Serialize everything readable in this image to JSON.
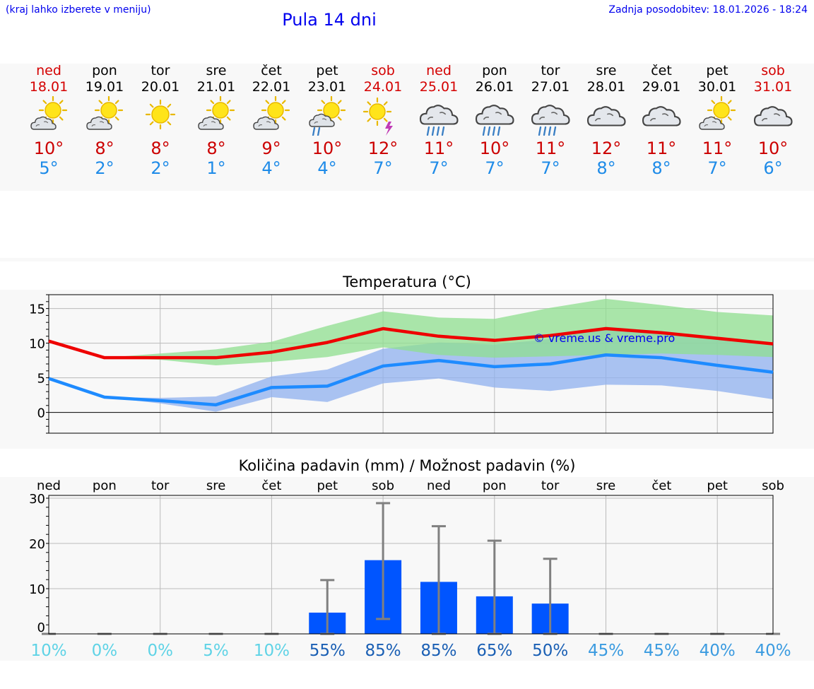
{
  "header": {
    "hint": "(kraj lahko izberete v meniju)",
    "title": "Pula 14 dni",
    "updated": "Zadnja posodobitev: 18.01.2026 - 18:24"
  },
  "days": [
    {
      "name": "ned",
      "date": "18.01",
      "weekend": true,
      "icon": "sun-cloud-icon",
      "tmax": "10°",
      "tmin": "5°"
    },
    {
      "name": "pon",
      "date": "19.01",
      "weekend": false,
      "icon": "sun-cloud-icon",
      "tmax": "8°",
      "tmin": "2°"
    },
    {
      "name": "tor",
      "date": "20.01",
      "weekend": false,
      "icon": "sun-icon",
      "tmax": "8°",
      "tmin": "2°"
    },
    {
      "name": "sre",
      "date": "21.01",
      "weekend": false,
      "icon": "sun-cloud-icon",
      "tmax": "8°",
      "tmin": "1°"
    },
    {
      "name": "čet",
      "date": "22.01",
      "weekend": false,
      "icon": "sun-cloud-icon",
      "tmax": "9°",
      "tmin": "4°"
    },
    {
      "name": "pet",
      "date": "23.01",
      "weekend": false,
      "icon": "sun-cloud-rain-icon",
      "tmax": "10°",
      "tmin": "4°"
    },
    {
      "name": "sob",
      "date": "24.01",
      "weekend": true,
      "icon": "sun-thunder-icon",
      "tmax": "12°",
      "tmin": "7°"
    },
    {
      "name": "ned",
      "date": "25.01",
      "weekend": true,
      "icon": "cloud-rain-icon",
      "tmax": "11°",
      "tmin": "7°"
    },
    {
      "name": "pon",
      "date": "26.01",
      "weekend": false,
      "icon": "cloud-rain-icon",
      "tmax": "10°",
      "tmin": "7°"
    },
    {
      "name": "tor",
      "date": "27.01",
      "weekend": false,
      "icon": "cloud-rain-icon",
      "tmax": "11°",
      "tmin": "7°"
    },
    {
      "name": "sre",
      "date": "28.01",
      "weekend": false,
      "icon": "cloud-icon",
      "tmax": "12°",
      "tmin": "8°"
    },
    {
      "name": "čet",
      "date": "29.01",
      "weekend": false,
      "icon": "cloud-icon",
      "tmax": "11°",
      "tmin": "8°"
    },
    {
      "name": "pet",
      "date": "30.01",
      "weekend": false,
      "icon": "sun-cloud-icon",
      "tmax": "11°",
      "tmin": "7°"
    },
    {
      "name": "sob",
      "date": "31.01",
      "weekend": true,
      "icon": "cloud-icon",
      "tmax": "10°",
      "tmin": "6°"
    }
  ],
  "colors": {
    "tmax_line": "#ee0000",
    "tmin_line": "#1e8bff",
    "max_band": "#8fdf8f",
    "min_band": "#8fb0ef",
    "bar": "#0055ff",
    "whisker": "#808080",
    "grid": "#bbbbbb"
  },
  "chart_data": [
    {
      "type": "line",
      "title": "Temperatura (°C)",
      "watermark": "© vreme.us & vreme.pro",
      "x": [
        "18.01",
        "19.01",
        "20.01",
        "21.01",
        "22.01",
        "23.01",
        "24.01",
        "25.01",
        "26.01",
        "27.01",
        "28.01",
        "29.01",
        "30.01",
        "31.01"
      ],
      "ylim": [
        -3,
        17
      ],
      "yticks": [
        0,
        5,
        10,
        15
      ],
      "series": [
        {
          "name": "tmax",
          "values": [
            10.3,
            7.9,
            7.9,
            7.9,
            8.7,
            10.1,
            12.1,
            11.0,
            10.4,
            11.1,
            12.1,
            11.5,
            10.7,
            9.9
          ],
          "band_low": [
            10.3,
            7.9,
            7.6,
            6.8,
            7.3,
            8.0,
            9.4,
            8.3,
            7.9,
            8.1,
            8.3,
            8.5,
            8.3,
            8.0
          ],
          "band_high": [
            10.3,
            7.9,
            8.5,
            9.1,
            10.2,
            12.5,
            14.6,
            13.7,
            13.5,
            15.1,
            16.4,
            15.5,
            14.5,
            14.0
          ]
        },
        {
          "name": "tmin",
          "values": [
            4.9,
            2.2,
            1.7,
            1.1,
            3.6,
            3.8,
            6.7,
            7.5,
            6.6,
            7.0,
            8.3,
            7.9,
            6.8,
            5.8
          ],
          "band_low": [
            4.9,
            2.2,
            1.3,
            0.1,
            2.2,
            1.5,
            4.2,
            4.9,
            3.6,
            3.1,
            4.0,
            3.9,
            3.1,
            1.9
          ],
          "band_high": [
            4.9,
            2.2,
            2.1,
            2.3,
            5.2,
            6.2,
            9.2,
            10.1,
            9.8,
            10.6,
            12.4,
            11.7,
            10.7,
            9.6
          ]
        }
      ]
    },
    {
      "type": "bar",
      "title": "Količina padavin (mm) / Možnost padavin (%)",
      "categories": [
        "ned",
        "pon",
        "tor",
        "sre",
        "čet",
        "pet",
        "sob",
        "ned",
        "pon",
        "tor",
        "sre",
        "čet",
        "pet",
        "sob"
      ],
      "values": [
        0,
        0,
        0,
        0,
        0,
        4.7,
        16.3,
        11.5,
        8.3,
        6.7,
        0,
        0,
        0,
        0
      ],
      "err_low": [
        0,
        0,
        0,
        0,
        0,
        0,
        3.3,
        0,
        0,
        0,
        0,
        0,
        0,
        0
      ],
      "err_high": [
        0,
        0,
        0,
        0,
        0,
        11.9,
        28.9,
        23.8,
        20.6,
        16.6,
        0,
        0,
        0,
        0
      ],
      "probability": [
        "10%",
        "0%",
        "0%",
        "5%",
        "10%",
        "55%",
        "85%",
        "85%",
        "65%",
        "50%",
        "45%",
        "45%",
        "40%",
        "40%"
      ],
      "probability_values": [
        10,
        0,
        0,
        5,
        10,
        55,
        85,
        85,
        65,
        50,
        45,
        45,
        40,
        40
      ],
      "ylim": [
        0,
        30
      ],
      "yticks": [
        0,
        10,
        20,
        30
      ]
    }
  ]
}
